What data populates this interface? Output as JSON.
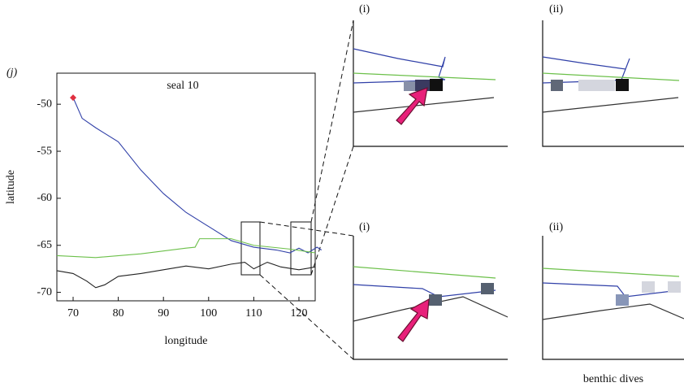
{
  "chart_data": {
    "type": "line",
    "title": "seal 10",
    "panel_label": "(j)",
    "xlabel": "longitude",
    "ylabel": "latitude",
    "xlim": [
      66.4,
      123.6
    ],
    "xticks": [
      70,
      80,
      90,
      100,
      110,
      120
    ],
    "ylim": [
      -70.9,
      -46.7
    ],
    "yticks": [
      -50,
      -55,
      -60,
      -65,
      -70
    ],
    "series": [
      {
        "color": "#3040a8",
        "x": [
          70,
          72,
          75,
          80,
          85,
          90,
          95,
          100,
          105,
          110,
          115,
          118,
          120,
          122,
          124,
          125
        ],
        "values": [
          -49.3,
          -51.5,
          -52.5,
          -54,
          -57,
          -59.5,
          -61.5,
          -63,
          -64.5,
          -65.2,
          -65.5,
          -65.8,
          -65.3,
          -65.8,
          -65.2,
          -65.5
        ]
      },
      {
        "color": "#6cc04a",
        "x": [
          66.4,
          75,
          85,
          95,
          97,
          98,
          105,
          110,
          118,
          123.6
        ],
        "values": [
          -66.1,
          -66.3,
          -65.9,
          -65.3,
          -65.2,
          -64.3,
          -64.3,
          -65,
          -65.4,
          -65.8
        ]
      },
      {
        "color": "#222222",
        "x": [
          66.4,
          70,
          73,
          75,
          77,
          80,
          85,
          90,
          95,
          100,
          105,
          108,
          110,
          113,
          116,
          120,
          123.6
        ],
        "values": [
          -67.7,
          -68,
          -68.8,
          -69.5,
          -69.2,
          -68.3,
          -68,
          -67.6,
          -67.2,
          -67.5,
          -67,
          -66.8,
          -67.5,
          -66.8,
          -67.3,
          -67.6,
          -67.3
        ]
      }
    ],
    "start_marker_color": "#e03040",
    "insets": {
      "top_left": "(i)",
      "top_right": "(ii)",
      "bottom_left": "(i)",
      "bottom_right": "(ii)",
      "caption": "benthic dives"
    }
  }
}
